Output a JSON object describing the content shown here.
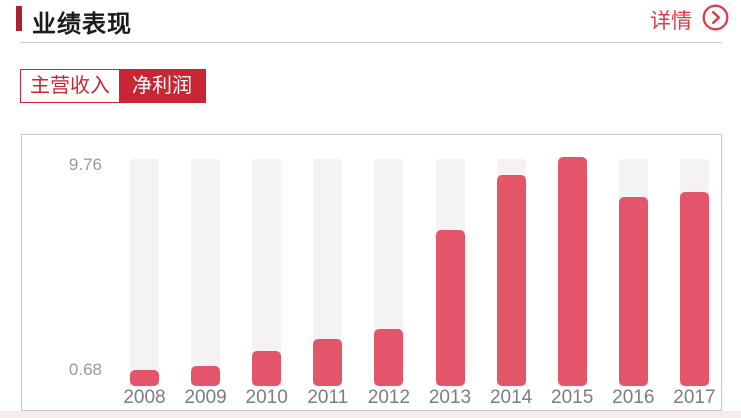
{
  "header": {
    "title": "业绩表现",
    "details_label": "详情",
    "details_icon": "circle-arrow-right-icon"
  },
  "tabs": [
    {
      "label": "主营收入",
      "active": true
    },
    {
      "label": "净利润",
      "active": false
    }
  ],
  "colors": {
    "accent_dark_red": "#a8232c",
    "tab_red": "#c92634",
    "link_red": "#dd3c4b",
    "bar_red": "#e5556a",
    "track_gray": "#f4f2f3",
    "axis_text": "#999999",
    "year_text": "#7d7d7d",
    "bottom_strip": "#f8ebeb"
  },
  "chart_data": {
    "type": "bar",
    "title": "业绩表现 - 主营收入",
    "series_name": "主营收入",
    "categories": [
      "2008",
      "2009",
      "2010",
      "2011",
      "2012",
      "2013",
      "2014",
      "2015",
      "2016",
      "2017"
    ],
    "values": [
      0.68,
      0.85,
      1.49,
      2.0,
      2.43,
      6.65,
      9.0,
      9.76,
      8.05,
      8.27
    ],
    "y_max_label": "9.76",
    "y_min_label": "0.68",
    "ylim": [
      0,
      9.76
    ],
    "xlabel": "",
    "ylabel": "",
    "grid": false,
    "legend_position": "none"
  }
}
